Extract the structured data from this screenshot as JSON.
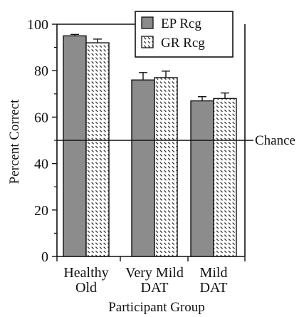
{
  "chart_data": {
    "type": "bar",
    "title": "",
    "xlabel": "Participant Group",
    "ylabel": "Percent Correct",
    "ylim": [
      0,
      100
    ],
    "yticks": [
      0,
      20,
      40,
      60,
      80,
      100
    ],
    "categories": [
      [
        "Healthy",
        "Old"
      ],
      [
        "Very Mild",
        "DAT"
      ],
      [
        "Mild",
        "DAT"
      ]
    ],
    "series": [
      {
        "name": "EP Rcg",
        "values": [
          95,
          76,
          67
        ],
        "errors": [
          0.6,
          3.2,
          1.8
        ],
        "fill": "#8c8c8c",
        "pattern": "solid"
      },
      {
        "name": "GR Rcg",
        "values": [
          92,
          77,
          68
        ],
        "errors": [
          1.6,
          2.8,
          2.4
        ],
        "fill": "#ffffff",
        "pattern": "dashed-hatch"
      }
    ],
    "reference_line": {
      "value": 50,
      "label": "Chance"
    },
    "legend": {
      "position": "top-right"
    },
    "grid": false
  }
}
